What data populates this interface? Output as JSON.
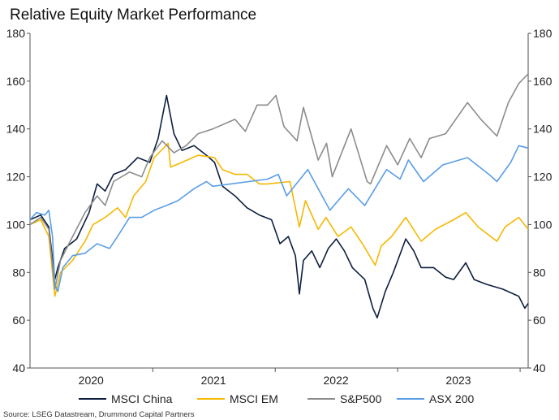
{
  "chart_data": {
    "type": "line",
    "title": "Relative Equity Market Performance",
    "source": "Source: LSEG Datastream, Drummond Capital Partners",
    "xlim": [
      "2020-01-01",
      "2024-01-25"
    ],
    "ylim": [
      40,
      180
    ],
    "yticks": [
      40,
      60,
      80,
      100,
      120,
      140,
      160,
      180
    ],
    "xtick_boundaries": [
      "2021-01-01",
      "2022-01-01",
      "2023-01-01",
      "2024-01-01"
    ],
    "xlabels": [
      {
        "label": "2020",
        "date": "2020-07-01"
      },
      {
        "label": "2021",
        "date": "2021-07-01"
      },
      {
        "label": "2022",
        "date": "2022-07-01"
      },
      {
        "label": "2023",
        "date": "2023-07-01"
      }
    ],
    "grid": false,
    "dual_y_axis": true,
    "legend_position": "bottom",
    "series": [
      {
        "name": "MSCI China",
        "color": "#0d1f3f",
        "points": [
          [
            "2020-01-01",
            102
          ],
          [
            "2020-02-02",
            104
          ],
          [
            "2020-02-26",
            99
          ],
          [
            "2020-03-15",
            77
          ],
          [
            "2020-03-24",
            82
          ],
          [
            "2020-04-13",
            90
          ],
          [
            "2020-05-19",
            94
          ],
          [
            "2020-06-25",
            105
          ],
          [
            "2020-07-19",
            117
          ],
          [
            "2020-08-12",
            114
          ],
          [
            "2020-09-06",
            121
          ],
          [
            "2020-10-12",
            123
          ],
          [
            "2020-11-17",
            128
          ],
          [
            "2020-12-23",
            126
          ],
          [
            "2021-01-17",
            136
          ],
          [
            "2021-02-11",
            154
          ],
          [
            "2021-03-05",
            138
          ],
          [
            "2021-03-29",
            131
          ],
          [
            "2021-05-04",
            133
          ],
          [
            "2021-06-10",
            129
          ],
          [
            "2021-07-04",
            126
          ],
          [
            "2021-07-28",
            116
          ],
          [
            "2021-09-03",
            112
          ],
          [
            "2021-10-09",
            107
          ],
          [
            "2021-11-15",
            104
          ],
          [
            "2021-12-21",
            102
          ],
          [
            "2022-01-15",
            92
          ],
          [
            "2022-02-09",
            95
          ],
          [
            "2022-03-02",
            87
          ],
          [
            "2022-03-14",
            71
          ],
          [
            "2022-03-26",
            85
          ],
          [
            "2022-04-20",
            89
          ],
          [
            "2022-05-14",
            82
          ],
          [
            "2022-06-08",
            90
          ],
          [
            "2022-07-02",
            94
          ],
          [
            "2022-07-26",
            89
          ],
          [
            "2022-08-19",
            82
          ],
          [
            "2022-09-25",
            77
          ],
          [
            "2022-10-19",
            65
          ],
          [
            "2022-11-01",
            61
          ],
          [
            "2022-11-25",
            72
          ],
          [
            "2022-12-19",
            80
          ],
          [
            "2023-01-25",
            94
          ],
          [
            "2023-02-18",
            89
          ],
          [
            "2023-03-12",
            82
          ],
          [
            "2023-04-18",
            82
          ],
          [
            "2023-05-24",
            78
          ],
          [
            "2023-06-17",
            77
          ],
          [
            "2023-07-23",
            84
          ],
          [
            "2023-08-17",
            77
          ],
          [
            "2023-09-23",
            75
          ],
          [
            "2023-11-10",
            73
          ],
          [
            "2023-12-28",
            70
          ],
          [
            "2024-01-15",
            65
          ],
          [
            "2024-01-25",
            67
          ]
        ]
      },
      {
        "name": "MSCI EM",
        "color": "#f5b800",
        "points": [
          [
            "2020-01-01",
            100
          ],
          [
            "2020-02-02",
            102
          ],
          [
            "2020-02-26",
            95
          ],
          [
            "2020-03-15",
            70
          ],
          [
            "2020-04-01",
            80
          ],
          [
            "2020-05-07",
            85
          ],
          [
            "2020-06-13",
            93
          ],
          [
            "2020-07-07",
            100
          ],
          [
            "2020-08-12",
            103
          ],
          [
            "2020-09-18",
            107
          ],
          [
            "2020-10-12",
            103
          ],
          [
            "2020-11-05",
            112
          ],
          [
            "2020-12-11",
            118
          ],
          [
            "2021-01-05",
            128
          ],
          [
            "2021-02-16",
            134
          ],
          [
            "2021-02-23",
            124
          ],
          [
            "2021-03-29",
            126
          ],
          [
            "2021-05-16",
            129
          ],
          [
            "2021-07-04",
            128
          ],
          [
            "2021-07-28",
            123
          ],
          [
            "2021-09-03",
            121
          ],
          [
            "2021-10-09",
            121
          ],
          [
            "2021-11-15",
            117
          ],
          [
            "2021-12-09",
            117
          ],
          [
            "2022-02-14",
            118
          ],
          [
            "2022-03-14",
            99
          ],
          [
            "2022-04-01",
            110
          ],
          [
            "2022-05-09",
            98
          ],
          [
            "2022-06-01",
            103
          ],
          [
            "2022-07-07",
            95
          ],
          [
            "2022-08-15",
            99
          ],
          [
            "2022-09-18",
            92
          ],
          [
            "2022-10-26",
            83
          ],
          [
            "2022-11-13",
            91
          ],
          [
            "2022-12-14",
            95
          ],
          [
            "2023-01-25",
            103
          ],
          [
            "2023-03-12",
            93
          ],
          [
            "2023-04-23",
            98
          ],
          [
            "2023-06-17",
            102
          ],
          [
            "2023-07-23",
            105
          ],
          [
            "2023-08-29",
            99
          ],
          [
            "2023-10-24",
            93
          ],
          [
            "2023-11-17",
            99
          ],
          [
            "2023-12-28",
            103
          ],
          [
            "2024-01-25",
            98
          ]
        ]
      },
      {
        "name": "S&P500",
        "color": "#8c8c8c",
        "points": [
          [
            "2020-01-01",
            100
          ],
          [
            "2020-02-02",
            103
          ],
          [
            "2020-02-26",
            98
          ],
          [
            "2020-03-15",
            73
          ],
          [
            "2020-04-01",
            85
          ],
          [
            "2020-05-07",
            95
          ],
          [
            "2020-06-13",
            105
          ],
          [
            "2020-07-19",
            112
          ],
          [
            "2020-08-12",
            108
          ],
          [
            "2020-09-06",
            118
          ],
          [
            "2020-10-24",
            122
          ],
          [
            "2020-11-29",
            120
          ],
          [
            "2020-12-23",
            128
          ],
          [
            "2021-01-29",
            135
          ],
          [
            "2021-03-05",
            130
          ],
          [
            "2021-04-10",
            133
          ],
          [
            "2021-05-16",
            138
          ],
          [
            "2021-06-29",
            140
          ],
          [
            "2021-09-03",
            144
          ],
          [
            "2021-10-04",
            139
          ],
          [
            "2021-11-08",
            150
          ],
          [
            "2021-12-09",
            150
          ],
          [
            "2022-01-03",
            154
          ],
          [
            "2022-01-27",
            141
          ],
          [
            "2022-03-07",
            135
          ],
          [
            "2022-03-26",
            149
          ],
          [
            "2022-05-09",
            127
          ],
          [
            "2022-06-03",
            134
          ],
          [
            "2022-06-20",
            120
          ],
          [
            "2022-08-15",
            140
          ],
          [
            "2022-10-02",
            118
          ],
          [
            "2022-10-12",
            117
          ],
          [
            "2022-11-29",
            133
          ],
          [
            "2023-01-01",
            125
          ],
          [
            "2023-02-06",
            136
          ],
          [
            "2023-03-12",
            128
          ],
          [
            "2023-04-06",
            136
          ],
          [
            "2023-05-24",
            138
          ],
          [
            "2023-07-28",
            151
          ],
          [
            "2023-09-06",
            144
          ],
          [
            "2023-10-24",
            137
          ],
          [
            "2023-11-27",
            151
          ],
          [
            "2023-12-28",
            159
          ],
          [
            "2024-01-25",
            163
          ]
        ]
      },
      {
        "name": "ASX 200",
        "color": "#5a9ee6",
        "points": [
          [
            "2020-01-01",
            102
          ],
          [
            "2020-01-20",
            105
          ],
          [
            "2020-02-14",
            104
          ],
          [
            "2020-02-26",
            106
          ],
          [
            "2020-03-08",
            95
          ],
          [
            "2020-03-15",
            75
          ],
          [
            "2020-03-24",
            72
          ],
          [
            "2020-04-08",
            82
          ],
          [
            "2020-05-07",
            87
          ],
          [
            "2020-06-13",
            88
          ],
          [
            "2020-07-19",
            92
          ],
          [
            "2020-08-25",
            90
          ],
          [
            "2020-09-18",
            95
          ],
          [
            "2020-10-24",
            103
          ],
          [
            "2020-11-29",
            103
          ],
          [
            "2021-01-05",
            106
          ],
          [
            "2021-02-11",
            108
          ],
          [
            "2021-03-17",
            110
          ],
          [
            "2021-05-04",
            115
          ],
          [
            "2021-06-10",
            118
          ],
          [
            "2021-06-29",
            116
          ],
          [
            "2021-12-09",
            119
          ],
          [
            "2022-01-10",
            121
          ],
          [
            "2022-02-04",
            112
          ],
          [
            "2022-04-08",
            123
          ],
          [
            "2022-06-13",
            106
          ],
          [
            "2022-08-07",
            115
          ],
          [
            "2022-09-25",
            108
          ],
          [
            "2022-11-29",
            123
          ],
          [
            "2023-01-08",
            119
          ],
          [
            "2023-02-02",
            127
          ],
          [
            "2023-03-19",
            118
          ],
          [
            "2023-05-16",
            125
          ],
          [
            "2023-07-28",
            128
          ],
          [
            "2023-09-30",
            121
          ],
          [
            "2023-10-24",
            118
          ],
          [
            "2023-12-04",
            126
          ],
          [
            "2023-12-28",
            133
          ],
          [
            "2024-01-25",
            132
          ]
        ]
      }
    ]
  }
}
